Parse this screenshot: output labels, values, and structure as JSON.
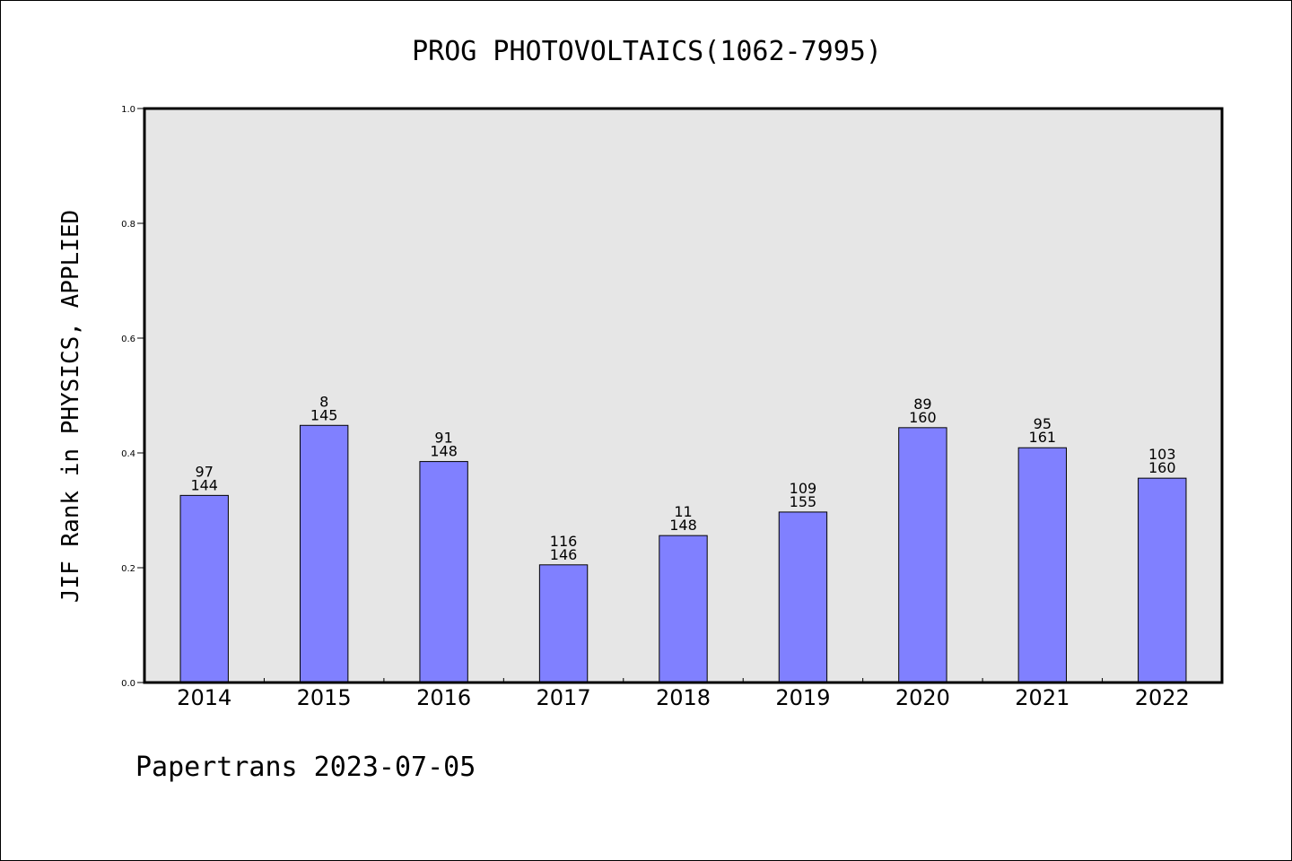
{
  "chart_data": {
    "type": "bar",
    "title": "PROG PHOTOVOLTAICS(1062-7995)",
    "ylabel": "JIF Rank in PHYSICS, APPLIED",
    "xlabel": "",
    "ylim": [
      0.0,
      1.0
    ],
    "yticks": [
      "0.0",
      "0.2",
      "0.4",
      "0.6",
      "0.8",
      "1.0"
    ],
    "grid": false,
    "categories": [
      "2014",
      "2015",
      "2016",
      "2017",
      "2018",
      "2019",
      "2020",
      "2021",
      "2022"
    ],
    "values": [
      0.326,
      0.448,
      0.385,
      0.205,
      0.256,
      0.297,
      0.444,
      0.409,
      0.356
    ],
    "labels_top": [
      "97",
      "8",
      "91",
      "116",
      "11",
      "109",
      "89",
      "95",
      "103"
    ],
    "labels_bottom": [
      "144",
      "145",
      "148",
      "146",
      "148",
      "155",
      "160",
      "161",
      "160"
    ],
    "bar_color": "#8080ff",
    "plot_background": "#e6e6e6"
  },
  "footer": "Papertrans 2023-07-05"
}
